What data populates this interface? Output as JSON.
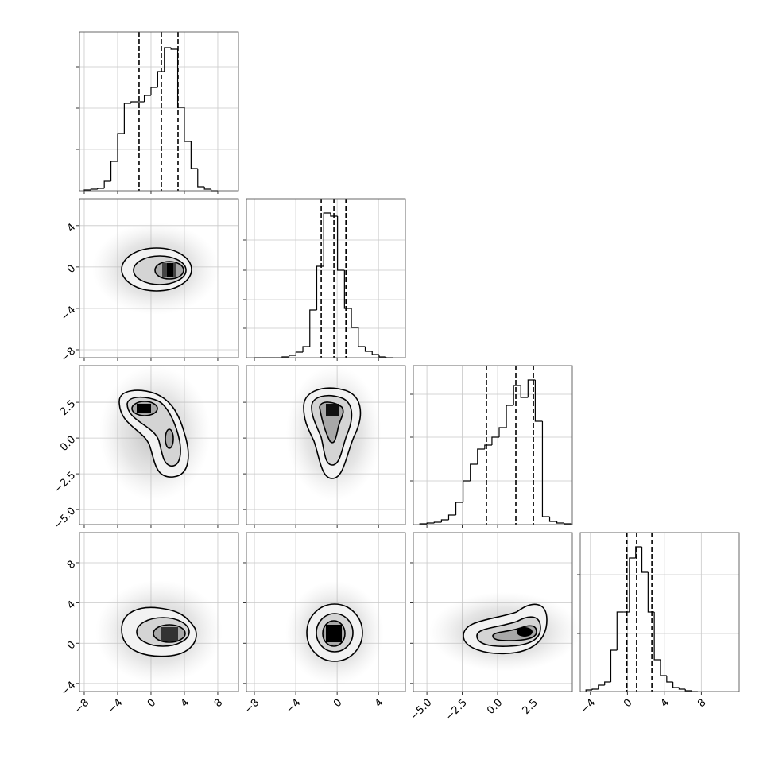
{
  "chart_data": {
    "type": "corner",
    "variables": [
      {
        "xlim": [
          -8.57,
          10.48
        ],
        "xticks": [
          {
            "value": -8,
            "label": "−8"
          },
          {
            "value": -4,
            "label": "−4"
          },
          0,
          4,
          8
        ],
        "hist": {
          "bins": [
            -8,
            -7.2,
            -6.4,
            -5.6,
            -4.8,
            -4,
            -3.2,
            -2.4,
            -1.6,
            -0.8,
            0,
            0.8,
            1.6,
            2.4,
            3.2,
            4,
            4.8,
            5.6,
            6.4,
            7.2,
            8
          ],
          "counts": [
            1,
            2,
            3,
            12,
            37,
            72,
            110,
            112,
            112,
            120,
            130,
            150,
            180,
            178,
            105,
            62,
            28,
            5,
            2,
            0
          ],
          "ylim": [
            0,
            200
          ],
          "yticks": [
            52,
            104,
            156
          ]
        },
        "quantiles": [
          -1.43,
          1.24,
          3.24
        ]
      },
      {
        "xlim": [
          -8.77,
          6.6
        ],
        "ylim": [
          -8.77,
          6.6
        ],
        "xticks": [
          {
            "value": -8,
            "label": "−8"
          },
          {
            "value": -4,
            "label": "−4"
          },
          0,
          4
        ],
        "yticks": [
          {
            "value": -8,
            "label": "−8"
          },
          {
            "value": -4,
            "label": "−4"
          },
          0,
          4
        ],
        "hist": {
          "bins": [
            -8,
            -7.33,
            -6.66,
            -5.99,
            -5.32,
            -4.65,
            -3.98,
            -3.31,
            -2.64,
            -1.97,
            -1.3,
            -0.63,
            0.04,
            0.71,
            1.38,
            2.05,
            2.72,
            3.39,
            4.06,
            4.73,
            5.4
          ],
          "counts": [
            0,
            0,
            0,
            0,
            1,
            3,
            7,
            14,
            60,
            115,
            182,
            178,
            110,
            62,
            38,
            14,
            8,
            4,
            1,
            0
          ],
          "ylim": [
            0,
            200
          ],
          "yticks": [
            37,
            73,
            110,
            148
          ]
        },
        "quantiles": [
          -1.54,
          -0.31,
          0.85
        ]
      },
      {
        "xlim": [
          -5.96,
          5.28
        ],
        "ylim": [
          -6.05,
          5.06
        ],
        "xticks": [
          {
            "value": -5,
            "label": "−5.0"
          },
          {
            "value": -2.5,
            "label": "−2.5"
          },
          {
            "value": 0,
            "label": "0.0"
          },
          2.5
        ],
        "yticks": [
          {
            "value": -5,
            "label": "−5.0"
          },
          {
            "value": -2.5,
            "label": "−2.5"
          },
          {
            "value": 0,
            "label": "0.0"
          },
          2.5
        ],
        "hist": {
          "bins": [
            -5.5,
            -4.99,
            -4.48,
            -3.97,
            -3.46,
            -2.95,
            -2.44,
            -1.93,
            -1.42,
            -0.91,
            -0.4,
            0.11,
            0.62,
            1.13,
            1.64,
            2.15,
            2.66,
            3.17,
            3.68,
            4.19,
            4.7,
            5.21
          ],
          "counts": [
            1,
            2,
            3,
            6,
            12,
            28,
            55,
            76,
            95,
            100,
            110,
            122,
            150,
            175,
            160,
            182,
            130,
            10,
            4,
            2,
            1
          ],
          "ylim": [
            0,
            200
          ],
          "yticks": [
            55,
            110,
            164
          ]
        },
        "quantiles": [
          -0.79,
          1.29,
          2.53
        ]
      },
      {
        "xlim": [
          -5.1,
          12.1
        ],
        "ylim": [
          -4.8,
          11.0
        ],
        "xticks": [
          {
            "value": -4,
            "label": "−4"
          },
          0,
          4,
          8
        ],
        "yticks": [
          {
            "value": -4,
            "label": "−4"
          },
          0,
          4,
          8
        ],
        "hist": {
          "bins": [
            -4.48,
            -3.81,
            -3.14,
            -2.46,
            -1.79,
            -1.12,
            -0.45,
            0.22,
            0.9,
            1.57,
            2.24,
            2.91,
            3.58,
            4.26,
            4.93,
            5.6,
            6.27,
            6.95,
            7.62
          ],
          "counts": [
            2,
            3,
            8,
            12,
            52,
            100,
            100,
            168,
            182,
            150,
            100,
            40,
            20,
            12,
            5,
            3,
            1,
            0
          ],
          "ylim": [
            0,
            200
          ],
          "yticks": [
            73,
            147
          ]
        },
        "quantiles": [
          -0.05,
          1.0,
          2.65
        ]
      }
    ]
  }
}
